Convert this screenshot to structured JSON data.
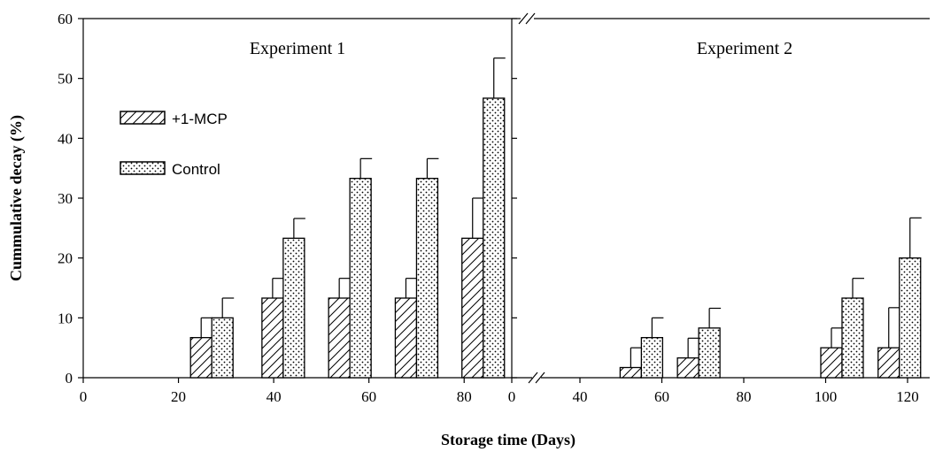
{
  "chart_data": {
    "type": "bar",
    "ylabel": "Cummulative decay (%)",
    "xlabel": "Storage time (Days)",
    "ylim": [
      0,
      60
    ],
    "yticks": [
      "0",
      "10",
      "20",
      "30",
      "40",
      "50",
      "60"
    ],
    "legend": {
      "placement": "upper-left of left panel",
      "entries": [
        {
          "label": "+1-MCP",
          "pattern": "diagonal-hatch"
        },
        {
          "label": "Control",
          "pattern": "dots"
        }
      ]
    },
    "panels": [
      {
        "title": "Experiment 1",
        "xlim": [
          0,
          90
        ],
        "xticks": [
          "0",
          "20",
          "40",
          "60",
          "80"
        ],
        "series": [
          {
            "name": "+1-MCP",
            "x": [
              27,
              42,
              56,
              70,
              84
            ],
            "values": [
              6.7,
              13.3,
              13.3,
              13.3,
              23.3
            ],
            "errors": [
              3.3,
              3.3,
              3.3,
              3.3,
              6.7
            ]
          },
          {
            "name": "Control",
            "x": [
              27,
              42,
              56,
              70,
              84
            ],
            "values": [
              10,
              23.3,
              33.3,
              33.3,
              46.7
            ],
            "errors": [
              3.3,
              3.3,
              3.3,
              3.3,
              6.7
            ]
          }
        ]
      },
      {
        "title": "Experiment 2",
        "xlim": [
          25,
          125
        ],
        "xaxis_break": true,
        "xticks": [
          "0",
          "40",
          "60",
          "80",
          "100",
          "120"
        ],
        "series": [
          {
            "name": "+1-MCP",
            "x": [
              55,
              69,
              104,
              118
            ],
            "values": [
              1.7,
              3.3,
              5,
              5
            ],
            "errors": [
              3.3,
              3.3,
              3.3,
              6.7
            ]
          },
          {
            "name": "Control",
            "x": [
              55,
              69,
              104,
              118
            ],
            "values": [
              6.7,
              8.3,
              13.3,
              20
            ],
            "errors": [
              3.3,
              3.3,
              3.3,
              6.7
            ]
          }
        ]
      }
    ]
  }
}
